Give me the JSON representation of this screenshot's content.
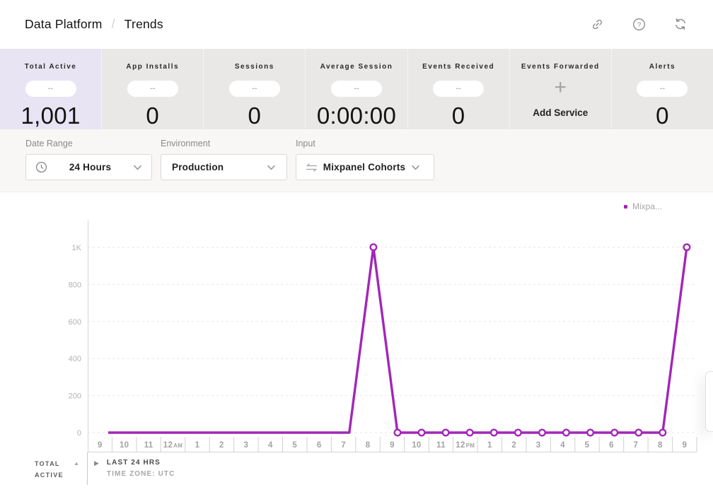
{
  "header": {
    "breadcrumb": {
      "parent": "Data Platform",
      "separator": "/",
      "current": "Trends"
    },
    "icons": [
      "share-link-icon",
      "help-icon",
      "refresh-icon"
    ]
  },
  "stats": {
    "tiles": [
      {
        "label": "Total Active",
        "pill": "--",
        "value": "1,001",
        "selected": true
      },
      {
        "label": "App Installs",
        "pill": "--",
        "value": "0"
      },
      {
        "label": "Sessions",
        "pill": "--",
        "value": "0"
      },
      {
        "label": "Average Session",
        "pill": "--",
        "value": "0:00:00"
      },
      {
        "label": "Events Received",
        "pill": "--",
        "value": "0"
      },
      {
        "label": "Events Forwarded",
        "icon": "plus-icon",
        "action": "Add Service"
      },
      {
        "label": "Alerts",
        "pill": "--",
        "value": "0"
      }
    ]
  },
  "filters": {
    "groups": [
      {
        "label": "Date Range",
        "value": "24 Hours",
        "icon": "clock-icon"
      },
      {
        "label": "Environment",
        "value": "Production",
        "icon": null
      },
      {
        "label": "Input",
        "value": "Mixpanel Cohorts",
        "icon": "swap-icon"
      }
    ]
  },
  "chart_data": {
    "type": "line",
    "title": "",
    "xlabel": "",
    "ylabel": "",
    "grid": "dashed-horizontal",
    "categories": [
      "9",
      "10",
      "11",
      "12AM",
      "1",
      "2",
      "3",
      "4",
      "5",
      "6",
      "7",
      "8",
      "9",
      "10",
      "11",
      "12PM",
      "1",
      "2",
      "3",
      "4",
      "5",
      "6",
      "7",
      "8",
      "9"
    ],
    "series": [
      {
        "name": "Mixpa...",
        "color": "#a226b8",
        "values": [
          0,
          0,
          0,
          0,
          0,
          0,
          0,
          0,
          0,
          0,
          0,
          1001,
          0,
          0,
          0,
          0,
          0,
          0,
          0,
          0,
          0,
          0,
          0,
          0,
          1001
        ]
      }
    ],
    "marker_indices": [
      11,
      12,
      13,
      14,
      15,
      16,
      17,
      18,
      19,
      20,
      21,
      22,
      23,
      24
    ],
    "ylim": [
      0,
      1000
    ],
    "yticks": [
      {
        "value": 0,
        "label": "0"
      },
      {
        "value": 200,
        "label": "200"
      },
      {
        "value": 400,
        "label": "400"
      },
      {
        "value": 600,
        "label": "600"
      },
      {
        "value": 800,
        "label": "800"
      },
      {
        "value": 1000,
        "label": "1K"
      }
    ],
    "legend": {
      "label": "Mixpa...",
      "color": "#a226b8",
      "position": "top-right"
    }
  },
  "footer": {
    "metric_line1": "TOTAL",
    "metric_line2": "ACTIVE",
    "range_label": "LAST 24 HRS",
    "timezone_label": "TIME ZONE: UTC"
  },
  "colors": {
    "accent_purple": "#a226b8",
    "selected_tile_bg": "#e8e4f4",
    "tile_bg": "#eae8e6",
    "filter_band_bg": "#f8f7f5"
  }
}
